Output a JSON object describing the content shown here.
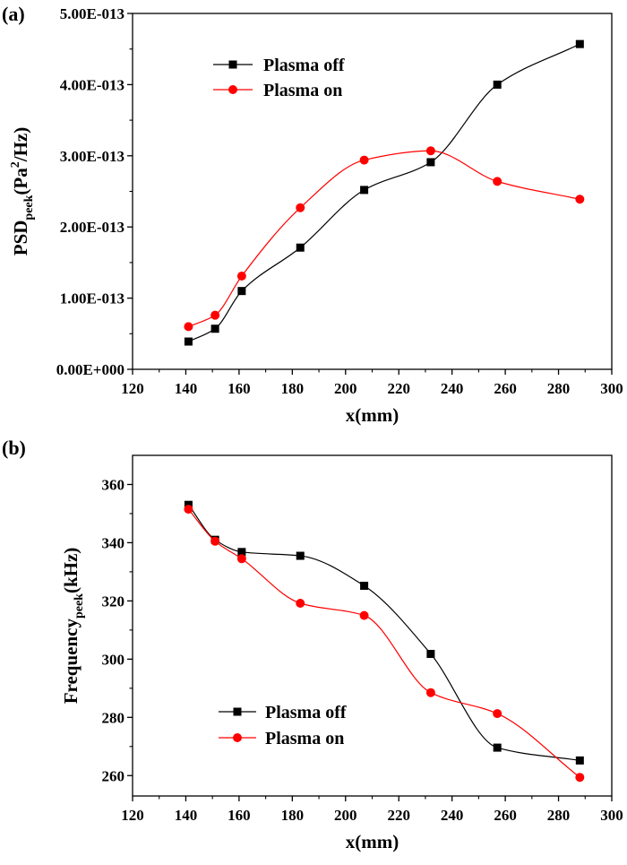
{
  "chart_data": [
    {
      "panel_label": "(a)",
      "type": "line",
      "xlabel": "x(mm)",
      "ylabel": {
        "base": "PSD",
        "subscript": "peek",
        "paren_open": "(Pa",
        "superscript": "2",
        "rest": "/Hz)"
      },
      "xlim": [
        120,
        300
      ],
      "ylim": [
        0,
        5e-13
      ],
      "xticks": [
        120,
        140,
        160,
        180,
        200,
        220,
        240,
        260,
        280,
        300
      ],
      "yticks": [
        0,
        1e-13,
        2e-13,
        3e-13,
        4e-13,
        5e-13
      ],
      "ytick_labels": [
        "0.00E+000",
        "1.00E-013",
        "2.00E-013",
        "3.00E-013",
        "4.00E-013",
        "5.00E-013"
      ],
      "grid": false,
      "legend_position": "top-left",
      "series": [
        {
          "name": "Plasma off",
          "marker": "square",
          "color": "#000000",
          "x": [
            141,
            151,
            161,
            183,
            207,
            232,
            257,
            288
          ],
          "y": [
            3.9e-14,
            5.7e-14,
            1.1e-13,
            1.71e-13,
            2.52e-13,
            2.91e-13,
            4e-13,
            4.57e-13
          ]
        },
        {
          "name": "Plasma on",
          "marker": "circle",
          "color": "#ff0000",
          "x": [
            141,
            151,
            161,
            183,
            207,
            232,
            257,
            288
          ],
          "y": [
            6e-14,
            7.6e-14,
            1.31e-13,
            2.27e-13,
            2.94e-13,
            3.07e-13,
            2.64e-13,
            2.39e-13
          ]
        }
      ]
    },
    {
      "panel_label": "(b)",
      "type": "line",
      "xlabel": "x(mm)",
      "ylabel": {
        "base": "Frequency",
        "subscript": "peek",
        "rest": "(kHz)"
      },
      "xlim": [
        120,
        300
      ],
      "ylim": [
        253,
        370
      ],
      "xticks": [
        120,
        140,
        160,
        180,
        200,
        220,
        240,
        260,
        280,
        300
      ],
      "yticks": [
        260,
        280,
        300,
        320,
        340,
        360
      ],
      "ytick_labels": [
        "260",
        "280",
        "300",
        "320",
        "340",
        "360"
      ],
      "grid": false,
      "legend_position": "bottom-left",
      "series": [
        {
          "name": "Plasma off",
          "marker": "square",
          "color": "#000000",
          "x": [
            141,
            151,
            161,
            183,
            207,
            232,
            257,
            288
          ],
          "y": [
            353,
            341,
            336.8,
            335.5,
            325.2,
            301.8,
            269.6,
            265.2
          ]
        },
        {
          "name": "Plasma on",
          "marker": "circle",
          "color": "#ff0000",
          "x": [
            141,
            151,
            161,
            183,
            207,
            232,
            257,
            288
          ],
          "y": [
            351.5,
            340.5,
            334.5,
            319.2,
            315,
            288.5,
            281.3,
            259.4
          ]
        }
      ]
    }
  ]
}
